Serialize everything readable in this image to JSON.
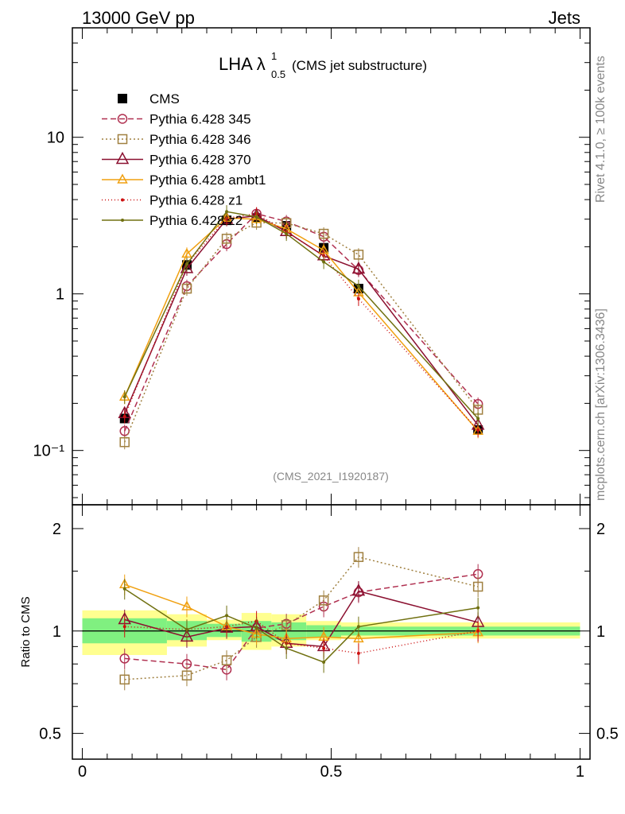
{
  "header": {
    "left_label": "13000 GeV pp",
    "right_label": "Jets"
  },
  "side_labels": {
    "rivet": "Rivet 4.1.0, ≥ 100k events",
    "mcplots": "mcplots.cern.ch [arXiv:1306.3436]"
  },
  "watermark": "(CMS_2021_I1920187)",
  "title": {
    "main": "LHA λ",
    "superscript": "1",
    "subscript": "0.5",
    "suffix": "(CMS jet substructure)"
  },
  "colors": {
    "CMS": "#000000",
    "p345": "#b03050",
    "p346": "#a08040",
    "p370": "#8b1030",
    "ambt1": "#f0a010",
    "z1": "#cc1010",
    "z2": "#707010",
    "band_inner": "#80f080",
    "band_outer": "#ffff90"
  },
  "chart_data": [
    {
      "type": "line",
      "log_y": true,
      "ylim": [
        0.045,
        50
      ],
      "xlim": [
        -0.02,
        1.02
      ],
      "y_tick_labels": [
        "10",
        "1",
        "10⁻¹"
      ],
      "y_tick_values": [
        10,
        1,
        0.1
      ],
      "x": [
        0.085,
        0.21,
        0.29,
        0.35,
        0.41,
        0.485,
        0.555,
        0.795
      ],
      "series": [
        {
          "name": "CMS",
          "values": [
            0.16,
            1.53,
            2.95,
            3.05,
            2.72,
            1.97,
            1.08,
            0.135
          ]
        },
        {
          "name": "Pythia 6.428 345",
          "values": [
            0.133,
            1.12,
            2.08,
            3.25,
            2.9,
            2.32,
            1.42,
            0.198
          ]
        },
        {
          "name": "Pythia 6.428 346",
          "values": [
            0.113,
            1.08,
            2.25,
            2.85,
            2.83,
            2.42,
            1.78,
            0.182
          ]
        },
        {
          "name": "Pythia 6.428 370",
          "values": [
            0.172,
            1.45,
            3.0,
            3.15,
            2.5,
            1.75,
            1.44,
            0.145
          ]
        },
        {
          "name": "Pythia 6.428 ambt1",
          "values": [
            0.22,
            1.8,
            3.05,
            3.0,
            2.6,
            1.9,
            1.02,
            0.133
          ]
        },
        {
          "name": "Pythia 6.428 z1",
          "values": [
            0.165,
            1.55,
            3.05,
            3.25,
            2.5,
            1.75,
            0.93,
            0.135
          ]
        },
        {
          "name": "Pythia 6.428 z2",
          "values": [
            0.22,
            1.55,
            3.35,
            3.1,
            2.42,
            1.6,
            1.12,
            0.16
          ]
        }
      ]
    },
    {
      "type": "line",
      "ylabel": "Ratio to CMS",
      "ylim": [
        0.42,
        2.35
      ],
      "xlim": [
        -0.02,
        1.02
      ],
      "x_tick_labels": [
        "0",
        "0.5",
        "1"
      ],
      "x_tick_values": [
        0,
        0.5,
        1
      ],
      "y_tick_labels": [
        "2",
        "1",
        "0.5"
      ],
      "y_tick_values": [
        2,
        1,
        0.5
      ],
      "x": [
        0.085,
        0.21,
        0.29,
        0.35,
        0.41,
        0.485,
        0.555,
        0.795
      ],
      "series": [
        {
          "name": "Pythia 6.428 345",
          "values": [
            0.83,
            0.8,
            0.77,
            1.02,
            1.05,
            1.18,
            1.3,
            1.47
          ]
        },
        {
          "name": "Pythia 6.428 346",
          "values": [
            0.72,
            0.74,
            0.82,
            0.96,
            1.04,
            1.23,
            1.65,
            1.35
          ]
        },
        {
          "name": "Pythia 6.428 370",
          "values": [
            1.08,
            0.96,
            1.02,
            1.03,
            0.92,
            0.9,
            1.31,
            1.06
          ]
        },
        {
          "name": "Pythia 6.428 ambt1",
          "values": [
            1.37,
            1.18,
            1.03,
            0.98,
            0.95,
            0.96,
            0.95,
            0.99
          ]
        },
        {
          "name": "Pythia 6.428 z1",
          "values": [
            1.03,
            1.01,
            1.03,
            1.07,
            0.92,
            0.89,
            0.86,
            1.0
          ]
        },
        {
          "name": "Pythia 6.428 z2",
          "values": [
            1.33,
            1.01,
            1.11,
            1.02,
            0.89,
            0.81,
            1.03,
            1.17
          ]
        }
      ],
      "band_edges": [
        0.0,
        0.17,
        0.25,
        0.32,
        0.38,
        0.45,
        0.52,
        1.0
      ],
      "band_inner_lo": [
        0.92,
        0.94,
        0.96,
        0.93,
        0.94,
        0.96,
        0.97
      ],
      "band_inner_hi": [
        1.09,
        1.07,
        1.05,
        1.07,
        1.06,
        1.04,
        1.03
      ],
      "band_outer_lo": [
        0.85,
        0.9,
        0.94,
        0.88,
        0.9,
        0.94,
        0.95
      ],
      "band_outer_hi": [
        1.15,
        1.12,
        1.08,
        1.13,
        1.12,
        1.07,
        1.06
      ]
    }
  ]
}
